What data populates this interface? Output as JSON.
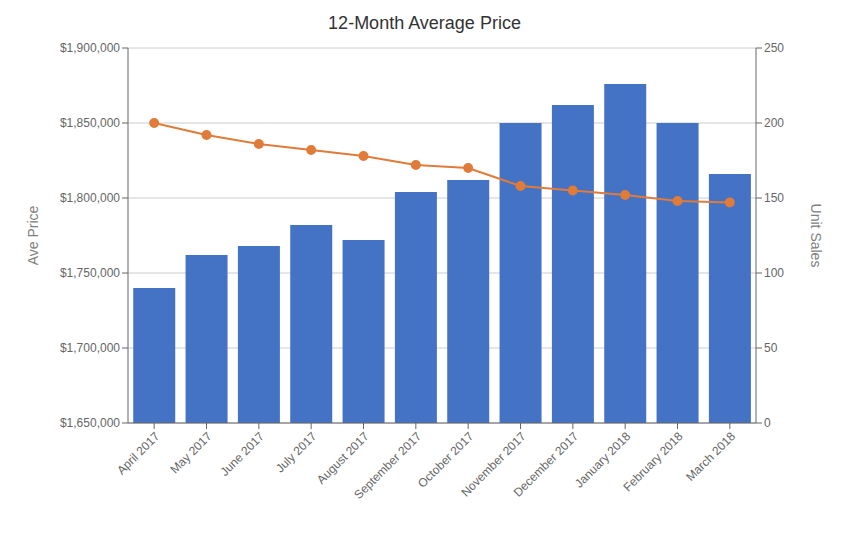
{
  "chart_data": {
    "type": "bar",
    "title": "12-Month Average Price",
    "categories": [
      "April 2017",
      "May 2017",
      "June 2017",
      "July 2017",
      "August 2017",
      "September 2017",
      "October 2017",
      "November 2017",
      "December 2017",
      "January 2018",
      "February 2018",
      "March 2018"
    ],
    "series": [
      {
        "type": "bar",
        "color": "#4472c4",
        "values": [
          1740000,
          1762000,
          1768000,
          1782000,
          1772000,
          1804000,
          1812000,
          1850000,
          1862000,
          1876000,
          1850000,
          1816000
        ]
      },
      {
        "type": "line",
        "color": "#e07b39",
        "marker": "circle",
        "line_style": "solid",
        "axis": "y2",
        "values": [
          200,
          192,
          186,
          182,
          178,
          172,
          170,
          158,
          155,
          152,
          148,
          147
        ]
      }
    ],
    "ylabel": "Ave Price",
    "y2label": "Unit Sales",
    "ylim": [
      1650000,
      1900000
    ],
    "yticks": [
      {
        "value": 1650000,
        "label": "$1,650,000"
      },
      {
        "value": 1700000,
        "label": "$1,700,000"
      },
      {
        "value": 1750000,
        "label": "$1,750,000"
      },
      {
        "value": 1800000,
        "label": "$1,800,000"
      },
      {
        "value": 1850000,
        "label": "$1,850,000"
      },
      {
        "value": 1900000,
        "label": "$1,900,000"
      }
    ],
    "y2lim": [
      0,
      250
    ],
    "y2ticks": [
      0,
      50,
      100,
      150,
      200,
      250
    ],
    "grid": true
  }
}
